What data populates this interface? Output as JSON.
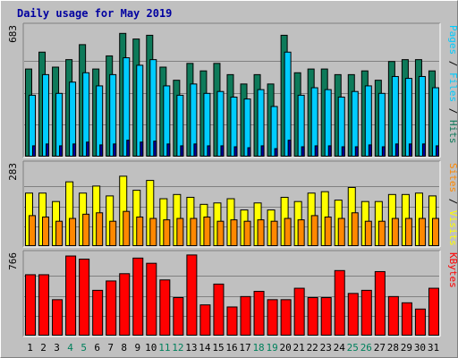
{
  "title": "Daily usage for May 2019",
  "colors": {
    "background": "#c0c0c0",
    "panel": "#c0c0c0",
    "grid": "#808080",
    "title": "#0000a0",
    "hits": "#006040",
    "hits_fill": "#0e7a5a",
    "files": "#00ccff",
    "pages": "#0000a0",
    "visits": "#ffff00",
    "sites": "#ff8800",
    "kbytes": "#ff0000",
    "weekend_label": "#00805c",
    "normal_label": "#000000"
  },
  "chart_data": [
    {
      "type": "bar",
      "panel": "top",
      "ylabel_max": "683",
      "right_label": {
        "parts": [
          {
            "text": "Pages",
            "color": "#00ccff"
          },
          {
            "text": " / ",
            "color": "#000000"
          },
          {
            "text": "Files",
            "color": "#00ccff"
          },
          {
            "text": " / ",
            "color": "#000000"
          },
          {
            "text": "Hits",
            "color": "#0e7a5a"
          }
        ]
      },
      "ylim": [
        0,
        683
      ],
      "categories": [
        "1",
        "2",
        "3",
        "4",
        "5",
        "6",
        "7",
        "8",
        "9",
        "10",
        "11",
        "12",
        "13",
        "14",
        "15",
        "16",
        "17",
        "18",
        "19",
        "20",
        "21",
        "22",
        "23",
        "24",
        "25",
        "26",
        "27",
        "28",
        "29",
        "30",
        "31"
      ],
      "series": [
        {
          "name": "Hits",
          "values": [
            470,
            560,
            480,
            520,
            600,
            470,
            540,
            660,
            630,
            650,
            480,
            410,
            500,
            460,
            500,
            440,
            390,
            440,
            390,
            650,
            450,
            470,
            470,
            440,
            440,
            460,
            410,
            510,
            520,
            520,
            460
          ]
        },
        {
          "name": "Files",
          "values": [
            330,
            440,
            340,
            400,
            450,
            380,
            440,
            530,
            490,
            520,
            380,
            330,
            390,
            340,
            350,
            320,
            310,
            360,
            270,
            560,
            330,
            370,
            360,
            320,
            350,
            380,
            340,
            430,
            420,
            430,
            370
          ]
        },
        {
          "name": "Pages",
          "values": [
            60,
            70,
            60,
            70,
            80,
            65,
            70,
            90,
            80,
            85,
            70,
            60,
            70,
            60,
            60,
            55,
            50,
            60,
            45,
            90,
            55,
            60,
            60,
            55,
            55,
            65,
            55,
            70,
            70,
            70,
            60
          ]
        }
      ]
    },
    {
      "type": "bar",
      "panel": "middle",
      "ylabel_max": "283",
      "right_label": {
        "parts": [
          {
            "text": "Sites",
            "color": "#ff8800"
          },
          {
            "text": " / ",
            "color": "#000000"
          },
          {
            "text": "Visits",
            "color": "#ffff00"
          }
        ]
      },
      "ylim": [
        0,
        283
      ],
      "categories": [
        "1",
        "2",
        "3",
        "4",
        "5",
        "6",
        "7",
        "8",
        "9",
        "10",
        "11",
        "12",
        "13",
        "14",
        "15",
        "16",
        "17",
        "18",
        "19",
        "20",
        "21",
        "22",
        "23",
        "24",
        "25",
        "26",
        "27",
        "28",
        "29",
        "30",
        "31"
      ],
      "series": [
        {
          "name": "Visits",
          "values": [
            190,
            190,
            160,
            230,
            190,
            215,
            180,
            250,
            200,
            235,
            170,
            185,
            175,
            150,
            155,
            170,
            130,
            155,
            130,
            175,
            160,
            190,
            195,
            165,
            210,
            160,
            160,
            185,
            185,
            190,
            180
          ]
        },
        {
          "name": "Sites",
          "values": [
            110,
            105,
            90,
            100,
            115,
            120,
            90,
            125,
            105,
            100,
            95,
            100,
            100,
            105,
            90,
            95,
            90,
            95,
            90,
            100,
            95,
            110,
            105,
            100,
            120,
            90,
            90,
            100,
            100,
            100,
            100
          ]
        }
      ]
    },
    {
      "type": "bar",
      "panel": "bottom",
      "ylabel_max": "766",
      "right_label": {
        "parts": [
          {
            "text": "KBytes",
            "color": "#ff0000"
          }
        ]
      },
      "ylim": [
        0,
        766
      ],
      "categories": [
        "1",
        "2",
        "3",
        "4",
        "5",
        "6",
        "7",
        "8",
        "9",
        "10",
        "11",
        "12",
        "13",
        "14",
        "15",
        "16",
        "17",
        "18",
        "19",
        "20",
        "21",
        "22",
        "23",
        "24",
        "25",
        "26",
        "27",
        "28",
        "29",
        "30",
        "31"
      ],
      "series": [
        {
          "name": "KBytes",
          "values": [
            590,
            590,
            350,
            770,
            740,
            440,
            530,
            600,
            750,
            700,
            540,
            370,
            780,
            300,
            500,
            280,
            380,
            430,
            350,
            350,
            460,
            370,
            370,
            630,
            410,
            440,
            620,
            380,
            320,
            260,
            460
          ]
        }
      ]
    }
  ],
  "x_labels": [
    {
      "text": "1",
      "weekend": false
    },
    {
      "text": "2",
      "weekend": false
    },
    {
      "text": "3",
      "weekend": false
    },
    {
      "text": "4",
      "weekend": true
    },
    {
      "text": "5",
      "weekend": true
    },
    {
      "text": "6",
      "weekend": false
    },
    {
      "text": "7",
      "weekend": false
    },
    {
      "text": "8",
      "weekend": false
    },
    {
      "text": "9",
      "weekend": false
    },
    {
      "text": "10",
      "weekend": false
    },
    {
      "text": "11",
      "weekend": true
    },
    {
      "text": "12",
      "weekend": true
    },
    {
      "text": "13",
      "weekend": false
    },
    {
      "text": "14",
      "weekend": false
    },
    {
      "text": "15",
      "weekend": false
    },
    {
      "text": "16",
      "weekend": false
    },
    {
      "text": "17",
      "weekend": false
    },
    {
      "text": "18",
      "weekend": true
    },
    {
      "text": "19",
      "weekend": true
    },
    {
      "text": "20",
      "weekend": false
    },
    {
      "text": "21",
      "weekend": false
    },
    {
      "text": "22",
      "weekend": false
    },
    {
      "text": "23",
      "weekend": false
    },
    {
      "text": "24",
      "weekend": false
    },
    {
      "text": "25",
      "weekend": true
    },
    {
      "text": "26",
      "weekend": true
    },
    {
      "text": "27",
      "weekend": false
    },
    {
      "text": "28",
      "weekend": false
    },
    {
      "text": "29",
      "weekend": false
    },
    {
      "text": "30",
      "weekend": false
    },
    {
      "text": "31",
      "weekend": false
    }
  ]
}
